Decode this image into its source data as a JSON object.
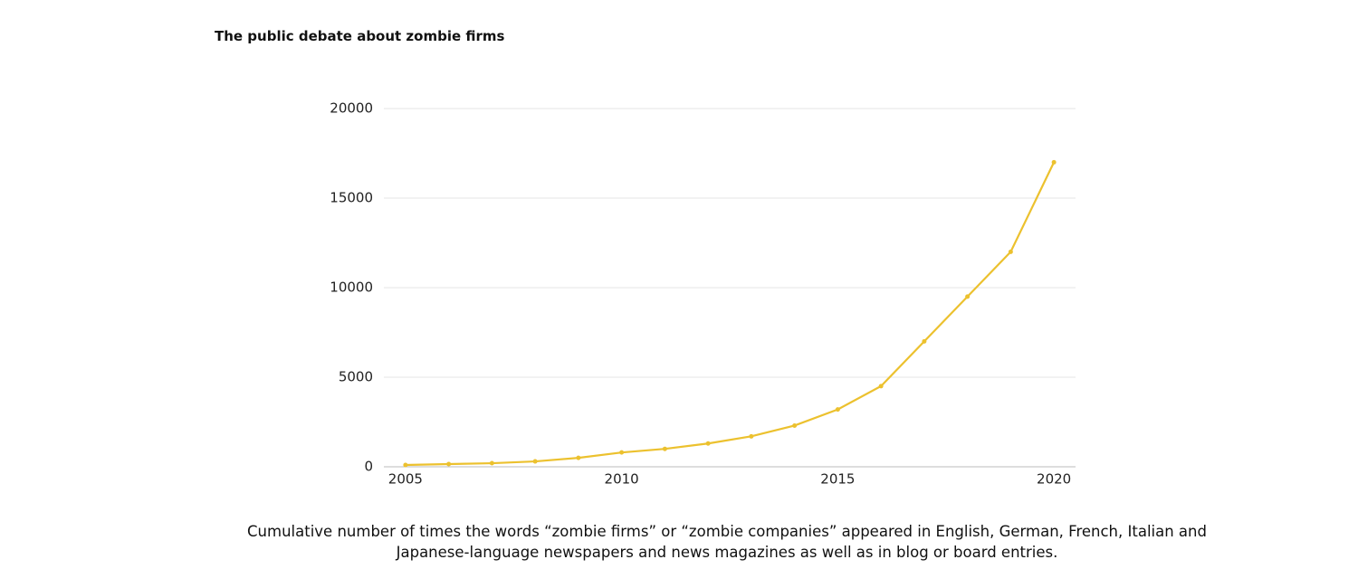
{
  "chart_data": {
    "type": "line",
    "title": "The public debate about zombie firms",
    "caption": "Cumulative number of times the words “zombie firms” or “zombie companies” appeared in English, German, French, Italian and Japanese-language newspapers and news magazines as well as in blog or board entries.",
    "x": [
      2005,
      2006,
      2007,
      2008,
      2009,
      2010,
      2011,
      2012,
      2013,
      2014,
      2015,
      2016,
      2017,
      2018,
      2019,
      2020
    ],
    "values": [
      100,
      150,
      200,
      300,
      500,
      800,
      1000,
      1300,
      1700,
      2300,
      3200,
      4500,
      7000,
      9500,
      12000,
      17000
    ],
    "color": "#ecc12e",
    "xlim": [
      2004.5,
      2020.5
    ],
    "xticks": [
      2005,
      2010,
      2015,
      2020
    ],
    "ylim": [
      0,
      20000
    ],
    "yticks": [
      0,
      5000,
      10000,
      15000,
      20000
    ],
    "grid": true
  }
}
